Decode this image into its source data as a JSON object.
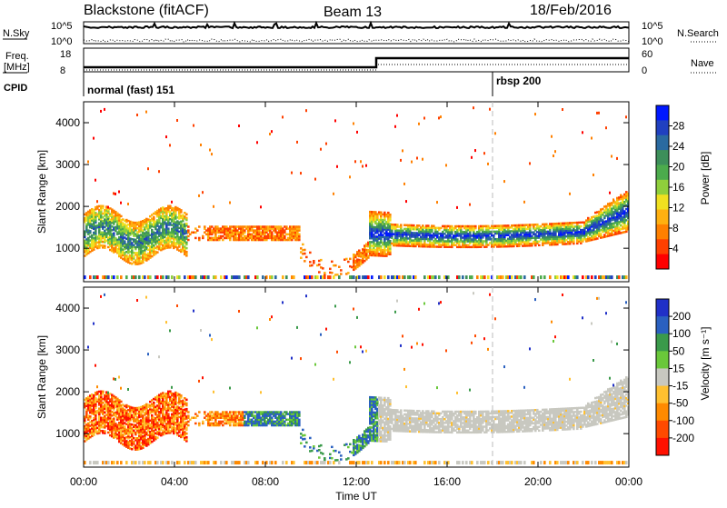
{
  "header": {
    "station": "Blackstone (fitACF)",
    "beam": "Beam 13",
    "date": "18/Feb/2016"
  },
  "panels": {
    "nsky_label": "N.Sky",
    "nsky_ticks": [
      "10^5",
      "10^0"
    ],
    "nsearch_label": "N.Search",
    "nsearch_ticks": [
      "10^5",
      "10^0"
    ],
    "freq_label_line1": "Freq.",
    "freq_label_line2": "[MHz]",
    "freq_ticks": [
      "18",
      "8"
    ],
    "nave_label": "Nave",
    "nave_ticks": [
      "60",
      "0"
    ],
    "cpid_label": "CPID",
    "cpid_segments": [
      {
        "name": "normal (fast) 151",
        "start_hour": 0
      },
      {
        "name": "rbsp 200",
        "start_hour": 18
      }
    ]
  },
  "chart_data": [
    {
      "type": "heatmap",
      "name": "power",
      "ylabel": "Slant Range [km]",
      "yticks": [
        "4000",
        "3000",
        "2000",
        "1000"
      ],
      "ylim": [
        200,
        4500
      ],
      "xlim": [
        0,
        24
      ],
      "colorbar_label": "Power [dB]",
      "colorbar_ticks": [
        "28",
        "24",
        "20",
        "16",
        "12",
        "8",
        "4"
      ],
      "colorbar_colors": [
        "#0018ff",
        "#2040c0",
        "#2a6aa0",
        "#3d8f5a",
        "#4cab4c",
        "#8fcf3c",
        "#f0e020",
        "#ffb010",
        "#ff8000",
        "#ff4000",
        "#ff0000"
      ]
    },
    {
      "type": "heatmap",
      "name": "velocity",
      "ylabel": "Slant Range [km]",
      "yticks": [
        "4000",
        "3000",
        "2000",
        "1000"
      ],
      "ylim": [
        200,
        4500
      ],
      "xlim": [
        0,
        24
      ],
      "colorbar_label": "Velocity [m s⁻¹]",
      "colorbar_ticks": [
        "200",
        "100",
        "50",
        "15",
        "-15",
        "-50",
        "-100",
        "-200"
      ],
      "colorbar_colors": [
        "#2030c8",
        "#2a60c0",
        "#3a9a4a",
        "#6ac83a",
        "#c8c8c0",
        "#ffc030",
        "#ff8a00",
        "#ff4a00",
        "#ff1000"
      ]
    }
  ],
  "xaxis": {
    "ticks": [
      "00:00",
      "04:00",
      "08:00",
      "12:00",
      "16:00",
      "20:00",
      "00:00"
    ],
    "label": "Time UT"
  }
}
